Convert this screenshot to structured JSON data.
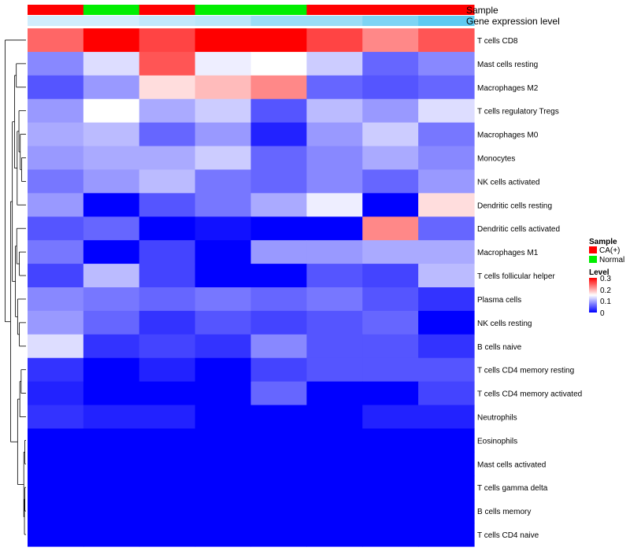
{
  "chart_data": {
    "type": "heatmap",
    "title": "",
    "annotation_labels": {
      "sample": "Sample",
      "expression": "Gene expression level"
    },
    "sample_groups": [
      "CA(+)",
      "Normal",
      "CA(+)",
      "Normal",
      "Normal",
      "CA(+)",
      "CA(+)",
      "CA(+)"
    ],
    "gene_expression_levels": [
      0.2,
      0.2,
      0.3,
      0.35,
      0.55,
      0.55,
      0.75,
      0.95
    ],
    "rows": [
      "T cells CD8",
      "Mast cells resting",
      "Macrophages M2",
      "T cells regulatory  Tregs",
      "Macrophages M0",
      "Monocytes",
      "NK cells activated",
      "Dendritic cells resting",
      "Dendritic cells activated",
      "Macrophages M1",
      "T cells follicular helper",
      "Plasma cells",
      "NK cells resting",
      "B cells naive",
      "T cells CD4 memory resting",
      "T cells CD4 memory activated",
      "Neutrophils",
      "Eosinophils",
      "Mast cells activated",
      "T cells gamma delta",
      "B cells memory",
      "T cells CD4 naive"
    ],
    "values": [
      [
        0.24,
        0.3,
        0.26,
        0.3,
        0.3,
        0.26,
        0.22,
        0.25
      ],
      [
        0.08,
        0.13,
        0.25,
        0.14,
        0.15,
        0.12,
        0.06,
        0.08
      ],
      [
        0.05,
        0.09,
        0.17,
        0.19,
        0.22,
        0.06,
        0.05,
        0.06
      ],
      [
        0.09,
        0.15,
        0.1,
        0.12,
        0.05,
        0.11,
        0.09,
        0.13
      ],
      [
        0.1,
        0.11,
        0.06,
        0.09,
        0.02,
        0.09,
        0.12,
        0.07
      ],
      [
        0.09,
        0.1,
        0.1,
        0.12,
        0.06,
        0.08,
        0.1,
        0.08
      ],
      [
        0.07,
        0.09,
        0.11,
        0.07,
        0.06,
        0.08,
        0.06,
        0.09
      ],
      [
        0.09,
        0.0,
        0.05,
        0.07,
        0.1,
        0.14,
        0.0,
        0.17
      ],
      [
        0.05,
        0.06,
        0.0,
        0.01,
        0.0,
        0.0,
        0.22,
        0.06
      ],
      [
        0.07,
        0.0,
        0.04,
        0.0,
        0.09,
        0.09,
        0.1,
        0.1
      ],
      [
        0.04,
        0.11,
        0.04,
        0.0,
        0.0,
        0.05,
        0.04,
        0.11
      ],
      [
        0.08,
        0.07,
        0.06,
        0.07,
        0.06,
        0.07,
        0.05,
        0.03
      ],
      [
        0.09,
        0.06,
        0.03,
        0.05,
        0.04,
        0.05,
        0.06,
        0.0
      ],
      [
        0.13,
        0.03,
        0.04,
        0.03,
        0.08,
        0.05,
        0.05,
        0.03
      ],
      [
        0.03,
        0.0,
        0.02,
        0.0,
        0.04,
        0.05,
        0.05,
        0.05
      ],
      [
        0.02,
        0.0,
        0.0,
        0.0,
        0.06,
        0.0,
        0.0,
        0.04
      ],
      [
        0.03,
        0.02,
        0.02,
        0.0,
        0.0,
        0.0,
        0.02,
        0.02
      ],
      [
        0.0,
        0.0,
        0.0,
        0.0,
        0.0,
        0.0,
        0.0,
        0.0
      ],
      [
        0.0,
        0.0,
        0.0,
        0.0,
        0.0,
        0.0,
        0.0,
        0.0
      ],
      [
        0.0,
        0.0,
        0.0,
        0.0,
        0.0,
        0.0,
        0.0,
        0.0
      ],
      [
        0.0,
        0.0,
        0.0,
        0.0,
        0.0,
        0.0,
        0.0,
        0.0
      ],
      [
        0.0,
        0.0,
        0.0,
        0.0,
        0.0,
        0.0,
        0.0,
        0.0
      ]
    ],
    "value_range": [
      0,
      0.3
    ],
    "colors": {
      "low": "#0000ff",
      "mid": "#ffffff",
      "high": "#ff0000",
      "ca_pos": "#ff0000",
      "normal": "#00ee00",
      "expression_low": "#f0f6ff",
      "expression_high": "#56c8f0",
      "dendrogram": "#000000"
    },
    "legend": {
      "sample_title": "Sample",
      "sample_entries": [
        "CA(+)",
        "Normal"
      ],
      "level_title": "Level",
      "level_ticks": [
        "0.3",
        "0.2",
        "0.1",
        "0"
      ],
      "position": "right"
    }
  }
}
